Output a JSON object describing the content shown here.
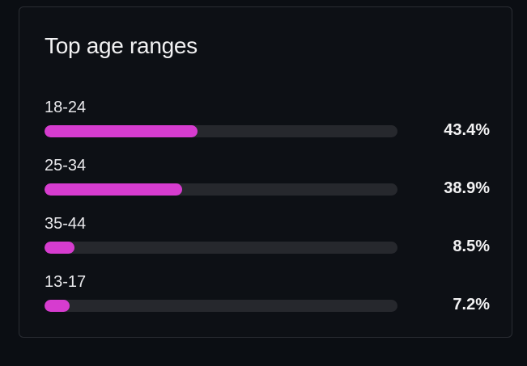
{
  "card": {
    "title": "Top age ranges"
  },
  "colors": {
    "accent": "#d63ccf",
    "track": "#26282d"
  },
  "age_ranges": [
    {
      "label": "18-24",
      "percent_text": "43.4%",
      "fill_fraction": 0.434
    },
    {
      "label": "25-34",
      "percent_text": "38.9%",
      "fill_fraction": 0.389
    },
    {
      "label": "35-44",
      "percent_text": "8.5%",
      "fill_fraction": 0.085
    },
    {
      "label": "13-17",
      "percent_text": "7.2%",
      "fill_fraction": 0.072
    }
  ]
}
